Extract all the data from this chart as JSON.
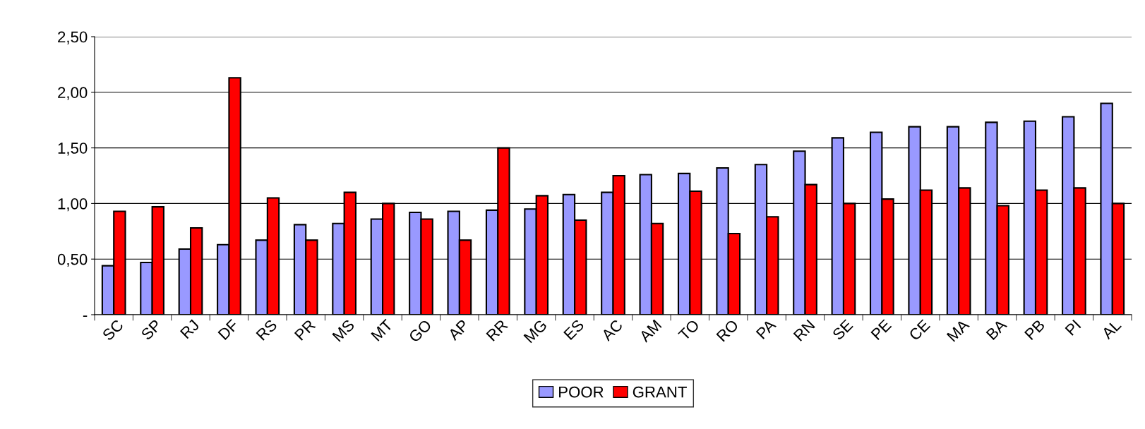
{
  "chart_data": {
    "type": "bar",
    "categories": [
      "SC",
      "SP",
      "RJ",
      "DF",
      "RS",
      "PR",
      "MS",
      "MT",
      "GO",
      "AP",
      "RR",
      "MG",
      "ES",
      "AC",
      "AM",
      "TO",
      "RO",
      "PA",
      "RN",
      "SE",
      "PE",
      "CE",
      "MA",
      "BA",
      "PB",
      "PI",
      "AL"
    ],
    "series": [
      {
        "name": "POOR",
        "color": "#9999ff",
        "values": [
          0.44,
          0.47,
          0.59,
          0.63,
          0.67,
          0.81,
          0.82,
          0.86,
          0.92,
          0.93,
          0.94,
          0.95,
          1.08,
          1.1,
          1.26,
          1.27,
          1.32,
          1.35,
          1.47,
          1.59,
          1.64,
          1.69,
          1.69,
          1.73,
          1.74,
          1.78,
          1.9
        ]
      },
      {
        "name": "GRANT",
        "color": "#ff0000",
        "values": [
          0.93,
          0.97,
          0.78,
          2.13,
          1.05,
          0.67,
          1.1,
          1.0,
          0.86,
          0.67,
          1.5,
          1.07,
          0.85,
          1.25,
          0.82,
          1.11,
          0.73,
          0.88,
          1.17,
          1.0,
          1.04,
          1.12,
          1.14,
          0.98,
          1.12,
          1.14,
          1.0
        ]
      }
    ],
    "ylim": [
      0,
      2.5
    ],
    "yticks": [
      {
        "value": 0,
        "label": "-"
      },
      {
        "value": 0.5,
        "label": "0,50"
      },
      {
        "value": 1,
        "label": "1,00"
      },
      {
        "value": 1.5,
        "label": "1,50"
      },
      {
        "value": 2,
        "label": "2,00"
      },
      {
        "value": 2.5,
        "label": "2,50"
      }
    ],
    "grid": "y",
    "legend": "bottom"
  }
}
